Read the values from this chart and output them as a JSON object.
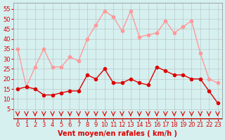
{
  "x": [
    0,
    1,
    2,
    3,
    4,
    5,
    6,
    7,
    8,
    9,
    10,
    11,
    12,
    13,
    14,
    15,
    16,
    17,
    18,
    19,
    20,
    21,
    22,
    23
  ],
  "wind_avg": [
    15,
    16,
    15,
    12,
    12,
    13,
    14,
    14,
    22,
    20,
    25,
    18,
    18,
    20,
    18,
    17,
    26,
    24,
    22,
    22,
    20,
    20,
    14,
    8
  ],
  "wind_gust": [
    35,
    16,
    26,
    35,
    26,
    26,
    31,
    29,
    40,
    47,
    54,
    51,
    44,
    54,
    41,
    42,
    43,
    49,
    43,
    46,
    49,
    33,
    20,
    18
  ],
  "arrow_markers": [
    0,
    1,
    2,
    3,
    4,
    5,
    6,
    7,
    8,
    9,
    10,
    11,
    12,
    13,
    14,
    15,
    16,
    17,
    18,
    19,
    20,
    21,
    22,
    23
  ],
  "bg_color": "#d6f0f0",
  "grid_color": "#aaaaaa",
  "line_color_avg": "#dd0000",
  "line_color_gust": "#ff9999",
  "xlabel": "Vent moyen/en rafales ( km/h )",
  "ylabel": "",
  "ylim": [
    0,
    58
  ],
  "xlim": [
    -0.5,
    23.5
  ],
  "yticks": [
    5,
    10,
    15,
    20,
    25,
    30,
    35,
    40,
    45,
    50,
    55
  ],
  "xticks": [
    0,
    1,
    2,
    3,
    4,
    5,
    6,
    7,
    8,
    9,
    10,
    11,
    12,
    13,
    14,
    15,
    16,
    17,
    18,
    19,
    20,
    21,
    22,
    23
  ],
  "tick_fontsize": 6,
  "xlabel_fontsize": 7,
  "marker_size": 3,
  "line_width": 1.0
}
